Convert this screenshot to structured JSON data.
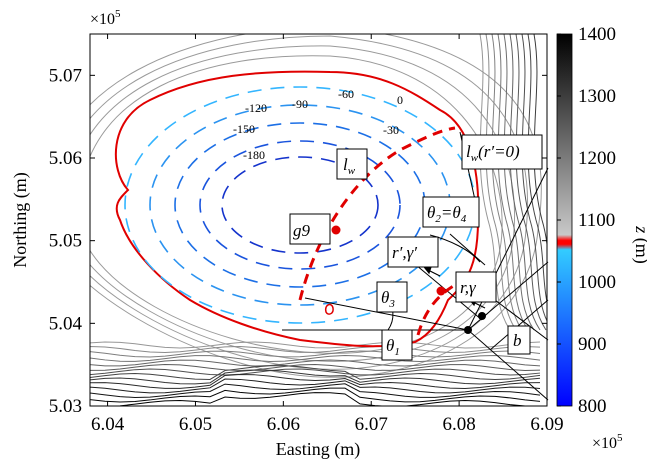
{
  "chart_data": {
    "type": "contour",
    "xlabel": "Easting (m)",
    "ylabel": "Northing (m)",
    "x_multiplier": "×10",
    "x_multiplier_exp": "5",
    "y_multiplier": "×10",
    "y_multiplier_exp": "5",
    "xlim": [
      6.038,
      6.09
    ],
    "ylim": [
      5.03,
      5.075
    ],
    "x_ticks": [
      6.04,
      6.05,
      6.06,
      6.07,
      6.08,
      6.09
    ],
    "x_tick_labels": [
      "6.04",
      "6.05",
      "6.06",
      "6.07",
      "6.08",
      "6.09"
    ],
    "y_ticks": [
      5.03,
      5.04,
      5.05,
      5.06,
      5.07
    ],
    "y_tick_labels": [
      "5.03",
      "5.04",
      "5.05",
      "5.06",
      "5.07"
    ],
    "colorbar": {
      "label": "z (m)",
      "range": [
        800,
        1400
      ],
      "ticks": [
        800,
        900,
        1000,
        1100,
        1200,
        1300,
        1400
      ],
      "tick_labels": [
        "800",
        "900",
        "1000",
        "1100",
        "1200",
        "1300",
        "1400"
      ],
      "shoreline_level": 1060,
      "colors": {
        "low": "#0000ff",
        "shore": "#ff0000",
        "high": "#000000",
        "mid": "#aaaaaa"
      }
    },
    "contour_labels": [
      "0",
      "-30",
      "-60",
      "-90",
      "-120",
      "-150",
      "-180"
    ],
    "annotations": {
      "lw": "l",
      "lw_sub": "w",
      "lw0": "l",
      "lw0_sub": "w",
      "lw0_rest": "(r′=0)",
      "g9": "g9",
      "theta24": "θ",
      "theta24_sub1": "2",
      "theta24_mid": "=θ",
      "theta24_sub2": "4",
      "rprime": "r′,γ′",
      "theta3": "θ",
      "theta3_sub": "3",
      "rgamma": "r,γ",
      "theta1": "θ",
      "theta1_sub": "1",
      "b": "b"
    },
    "points": [
      {
        "name": "g9",
        "x": 6.066,
        "y": 5.0513
      },
      {
        "name": "lake-point",
        "x": 6.078,
        "y": 5.0437
      }
    ]
  }
}
